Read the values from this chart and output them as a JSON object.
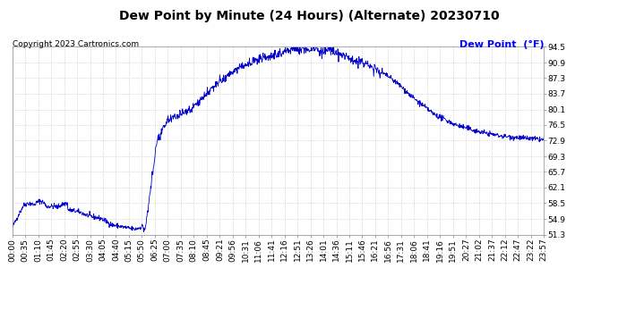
{
  "title": "Dew Point by Minute (24 Hours) (Alternate) 20230710",
  "copyright": "Copyright 2023 Cartronics.com",
  "legend_label": "Dew Point  (°F)",
  "background_color": "#ffffff",
  "plot_bg_color": "#ffffff",
  "line_color": "#0000cc",
  "grid_color": "#bbbbbb",
  "title_color": "#000000",
  "copyright_color": "#000000",
  "legend_color": "#0000ff",
  "yticks": [
    51.3,
    54.9,
    58.5,
    62.1,
    65.7,
    69.3,
    72.9,
    76.5,
    80.1,
    83.7,
    87.3,
    90.9,
    94.5
  ],
  "ylim": [
    51.3,
    94.5
  ],
  "xtick_labels": [
    "00:00",
    "00:35",
    "01:10",
    "01:45",
    "02:20",
    "02:55",
    "03:30",
    "04:05",
    "04:40",
    "05:15",
    "05:50",
    "06:25",
    "07:00",
    "07:35",
    "08:10",
    "08:45",
    "09:21",
    "09:56",
    "10:31",
    "11:06",
    "11:41",
    "12:16",
    "12:51",
    "13:26",
    "14:01",
    "14:36",
    "15:11",
    "15:46",
    "16:21",
    "16:56",
    "17:31",
    "18:06",
    "18:41",
    "19:16",
    "19:51",
    "20:27",
    "21:02",
    "21:37",
    "22:12",
    "22:47",
    "23:22",
    "23:57"
  ],
  "title_fontsize": 10,
  "copyright_fontsize": 6.5,
  "legend_fontsize": 8,
  "tick_fontsize": 6.5
}
